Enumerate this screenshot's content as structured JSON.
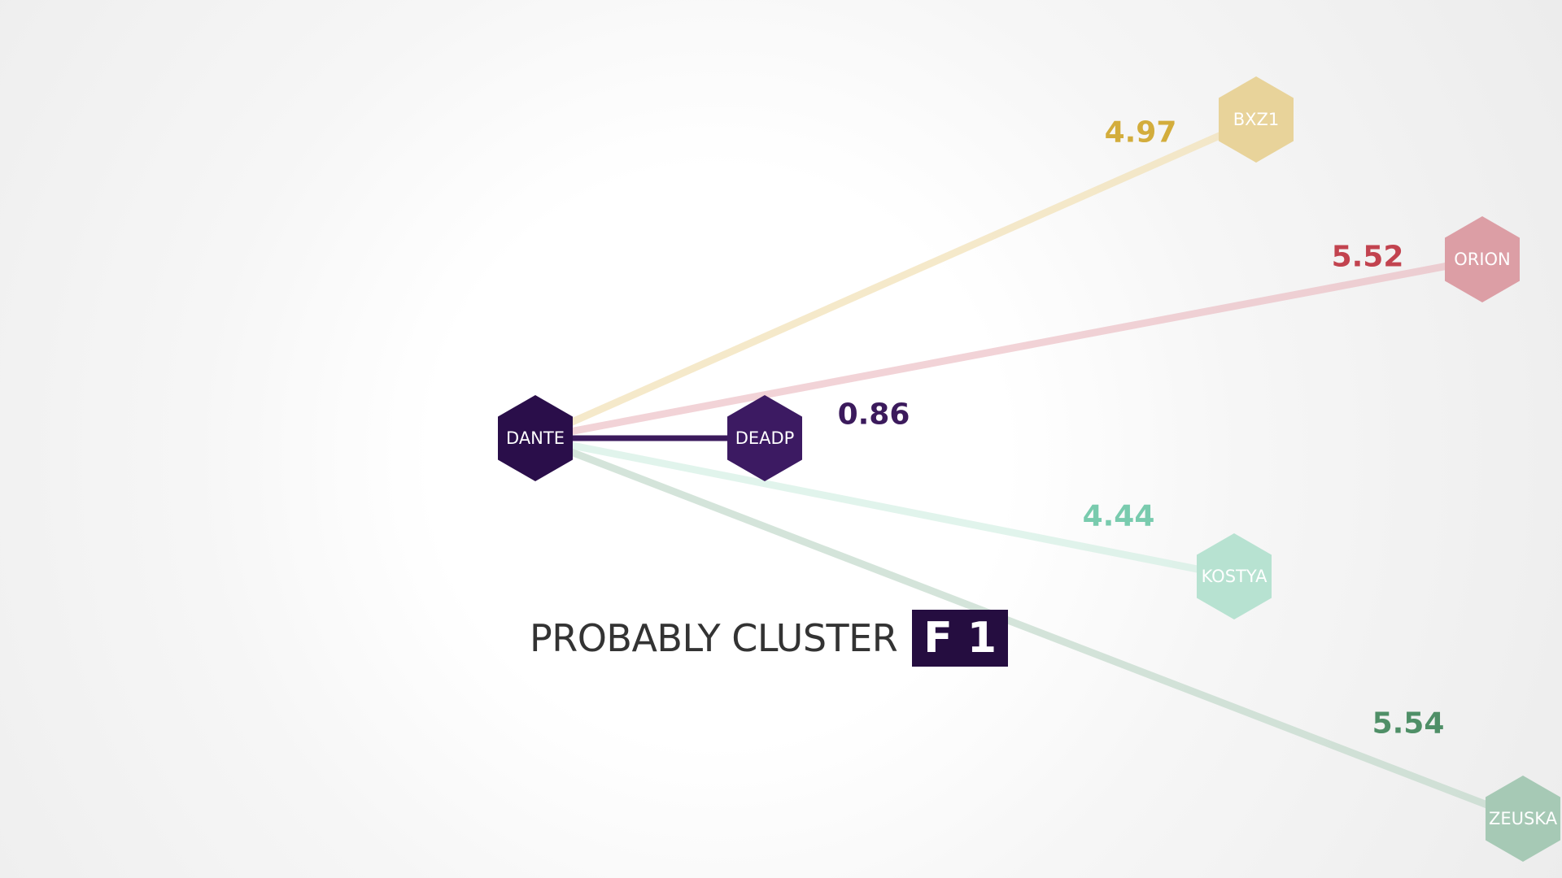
{
  "caption": {
    "text": "PROBABLY CLUSTER",
    "badge": "F 1"
  },
  "center_node": {
    "label": "DANTE",
    "color": "#2a0e4a"
  },
  "nodes": [
    {
      "label": "DEADP",
      "value": "0.86",
      "color": "#3c1a62",
      "line_color": "#3b1a5c",
      "line_opacity": 1.0,
      "node_opacity": 1.0,
      "value_color": "#3b1a5c"
    },
    {
      "label": "BXZ1",
      "value": "4.97",
      "color": "#e8d39a",
      "line_color": "#f1e1b8",
      "line_opacity": 0.75,
      "node_opacity": 1.0,
      "value_color": "#d3ad3c"
    },
    {
      "label": "ORION",
      "value": "5.52",
      "color": "#dc9ea5",
      "line_color": "#e9b6bc",
      "line_opacity": 0.6,
      "node_opacity": 1.0,
      "value_color": "#c2434f"
    },
    {
      "label": "KOSTYA",
      "value": "4.44",
      "color": "#b7e2d1",
      "line_color": "#cdece0",
      "line_opacity": 0.6,
      "node_opacity": 1.0,
      "value_color": "#79cbae"
    },
    {
      "label": "ZEUSKA",
      "value": "5.54",
      "color": "#a6c9b5",
      "line_color": "#c2d8cb",
      "line_opacity": 0.7,
      "node_opacity": 1.0,
      "value_color": "#4f8f67"
    }
  ]
}
